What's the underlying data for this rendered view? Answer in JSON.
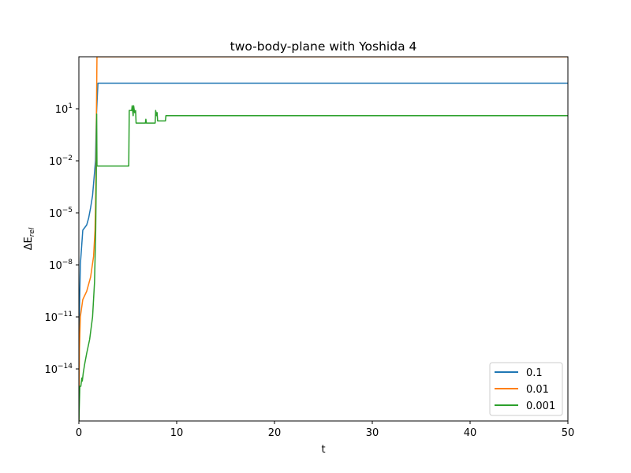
{
  "chart_data": {
    "type": "line",
    "title": "two-body-plane with Yoshida 4",
    "xlabel": "t",
    "ylabel_base": "ΔE",
    "ylabel_sub": "rel",
    "xlim": [
      0,
      50
    ],
    "ylim": [
      1e-17,
      10000.0
    ],
    "yscale": "log",
    "grid": false,
    "legend_position": "lower-right",
    "x_ticks": [
      {
        "value": 0,
        "label": "0"
      },
      {
        "value": 10,
        "label": "10"
      },
      {
        "value": 20,
        "label": "20"
      },
      {
        "value": 30,
        "label": "30"
      },
      {
        "value": 40,
        "label": "40"
      },
      {
        "value": 50,
        "label": "50"
      }
    ],
    "y_ticks": [
      {
        "value": 1e-14,
        "base": "10",
        "exp": "−14"
      },
      {
        "value": 1e-11,
        "base": "10",
        "exp": "−11"
      },
      {
        "value": 1e-08,
        "base": "10",
        "exp": "−8"
      },
      {
        "value": 1e-05,
        "base": "10",
        "exp": "−5"
      },
      {
        "value": 0.01,
        "base": "10",
        "exp": "−2"
      },
      {
        "value": 10,
        "base": "10",
        "exp": "1"
      }
    ],
    "series": [
      {
        "name": "0.1",
        "color": "#1f77b4",
        "points": [
          [
            0,
            1e-17
          ],
          [
            0.05,
            1e-11
          ],
          [
            0.15,
            1e-08
          ],
          [
            0.4,
            1e-06
          ],
          [
            0.8,
            2e-06
          ],
          [
            1.0,
            5e-06
          ],
          [
            1.2,
            2e-05
          ],
          [
            1.4,
            0.0001
          ],
          [
            1.55,
            0.001
          ],
          [
            1.7,
            0.01
          ],
          [
            1.8,
            5
          ],
          [
            1.95,
            300
          ],
          [
            50,
            300
          ]
        ]
      },
      {
        "name": "0.01",
        "color": "#ff7f0e",
        "points": [
          [
            0,
            1e-17
          ],
          [
            0.05,
            1e-13
          ],
          [
            0.15,
            1e-11
          ],
          [
            0.4,
            1e-10
          ],
          [
            0.8,
            3e-10
          ],
          [
            1.2,
            2e-09
          ],
          [
            1.5,
            3e-08
          ],
          [
            1.65,
            1e-06
          ],
          [
            1.72,
            0.0001
          ],
          [
            1.78,
            0.1
          ],
          [
            1.8,
            10
          ],
          [
            1.85,
            10000
          ],
          [
            50,
            10000
          ]
        ]
      },
      {
        "name": "0.001",
        "color": "#2ca02c",
        "points": [
          [
            0,
            1e-17
          ],
          [
            0.1,
            1e-15
          ],
          [
            0.2,
            1e-15
          ],
          [
            0.3,
            3e-15
          ],
          [
            0.35,
            2e-15
          ],
          [
            0.45,
            6e-15
          ],
          [
            0.6,
            2e-14
          ],
          [
            0.8,
            8e-14
          ],
          [
            1.1,
            5e-13
          ],
          [
            1.4,
            1e-11
          ],
          [
            1.6,
            1e-09
          ],
          [
            1.72,
            1e-06
          ],
          [
            1.78,
            0.001
          ],
          [
            1.82,
            5
          ],
          [
            1.85,
            0.005
          ],
          [
            5.1,
            0.005
          ],
          [
            5.15,
            8
          ],
          [
            5.4,
            8
          ],
          [
            5.45,
            15
          ],
          [
            5.55,
            4
          ],
          [
            5.6,
            15
          ],
          [
            5.7,
            6
          ],
          [
            5.8,
            8
          ],
          [
            5.85,
            1.5
          ],
          [
            6.8,
            1.5
          ],
          [
            6.85,
            2.5
          ],
          [
            6.9,
            1.5
          ],
          [
            7.8,
            1.5
          ],
          [
            7.85,
            8
          ],
          [
            7.95,
            4
          ],
          [
            8.0,
            6
          ],
          [
            8.05,
            2
          ],
          [
            8.85,
            2
          ],
          [
            8.9,
            4
          ],
          [
            50,
            4
          ]
        ]
      }
    ]
  }
}
